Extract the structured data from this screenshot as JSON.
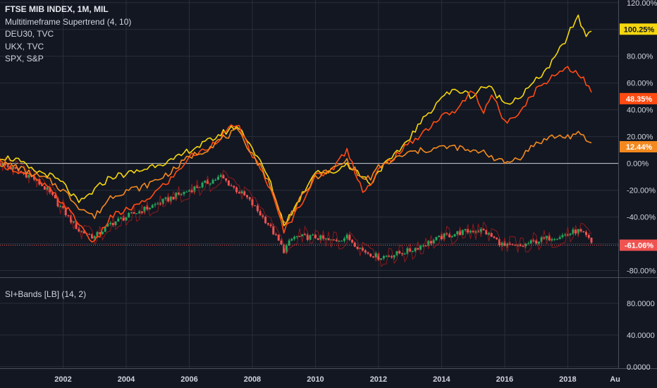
{
  "legend": {
    "title": "FTSE MIB INDEX, 1M, MIL",
    "items": [
      "Multitimeframe Supertrend (4, 10)",
      "DEU30, TVC",
      "UKX, TVC",
      "SPX, S&P"
    ]
  },
  "sub_legend": "SI+Bands [LB] (14, 2)",
  "colors": {
    "background": "#131722",
    "grid": "#2a2e39",
    "zero_line": "#c9ccd6",
    "spx": "#f5d60f",
    "deu30": "#ff4b12",
    "ukx": "#f3891e",
    "candle_up": "#26a65b",
    "candle_down": "#ef5350",
    "supertrend_down": "#9b1b1b",
    "supertrend_up": "#1f5c2a",
    "last_price_line": "#ef5350"
  },
  "chart_data": [
    {
      "type": "line",
      "title": "FTSE MIB INDEX, 1M, MIL",
      "x": [
        2000,
        2000.5,
        2001,
        2001.5,
        2002,
        2002.5,
        2003,
        2003.5,
        2004,
        2004.5,
        2005,
        2005.5,
        2006,
        2006.5,
        2007,
        2007.5,
        2007.8,
        2008.5,
        2009.0,
        2009.3,
        2010,
        2010.5,
        2011,
        2011.5,
        2011.8,
        2012,
        2012.5,
        2013,
        2013.5,
        2014,
        2014.5,
        2015,
        2015.3,
        2015.6,
        2016,
        2016.5,
        2017,
        2017.5,
        2018,
        2018.3,
        2018.6,
        2018.8
      ],
      "series": [
        {
          "name": "SPX, S&P",
          "color_key": "spx",
          "values": [
            5,
            3,
            -5,
            -8,
            -15,
            -30,
            -20,
            -10,
            -8,
            -5,
            0,
            2,
            10,
            15,
            22,
            28,
            20,
            -10,
            -45,
            -35,
            -5,
            -8,
            0,
            -10,
            -15,
            -5,
            5,
            20,
            35,
            50,
            55,
            50,
            58,
            55,
            45,
            50,
            62,
            75,
            95,
            110,
            95,
            100.25
          ]
        },
        {
          "name": "DEU30, TVC",
          "color_key": "deu30",
          "values": [
            0,
            -5,
            -10,
            -18,
            -30,
            -45,
            -60,
            -40,
            -35,
            -30,
            -20,
            -10,
            5,
            10,
            20,
            30,
            15,
            -15,
            -50,
            -40,
            -10,
            -5,
            10,
            -20,
            -15,
            -5,
            5,
            15,
            25,
            35,
            40,
            55,
            38,
            52,
            30,
            40,
            55,
            65,
            72,
            68,
            60,
            48.35
          ]
        },
        {
          "name": "UKX, TVC",
          "color_key": "ukx",
          "values": [
            0,
            -2,
            -8,
            -12,
            -20,
            -32,
            -40,
            -25,
            -20,
            -18,
            -12,
            -5,
            5,
            10,
            18,
            24,
            15,
            -12,
            -45,
            -35,
            -10,
            -5,
            2,
            -12,
            -10,
            -3,
            3,
            8,
            10,
            12,
            12,
            8,
            10,
            5,
            0,
            5,
            15,
            20,
            20,
            22,
            18,
            12.44
          ]
        },
        {
          "name": "FTSE MIB INDEX, 1M, MIL",
          "color_key": "candle_up",
          "values": [
            0,
            -5,
            -10,
            -20,
            -35,
            -50,
            -55,
            -45,
            -40,
            -35,
            -30,
            -25,
            -20,
            -15,
            -10,
            -20,
            -25,
            -45,
            -65,
            -55,
            -55,
            -58,
            -55,
            -65,
            -68,
            -70,
            -68,
            -65,
            -60,
            -55,
            -52,
            -50,
            -50,
            -55,
            -62,
            -62,
            -58,
            -55,
            -53,
            -50,
            -55,
            -61.06
          ]
        }
      ],
      "y_ticks": [
        "120.00%",
        "100.00%",
        "80.00%",
        "60.00%",
        "40.00%",
        "20.00%",
        "0.00%",
        "-20.00%",
        "-40.00%",
        "-60.00%",
        "-80.00%"
      ],
      "ylim": [
        -85,
        122
      ],
      "last_value_badges": [
        {
          "text": "100.25%",
          "value": 100.25,
          "bg": "#f5d60f",
          "fg": "#131722"
        },
        {
          "text": "48.35%",
          "value": 48.35,
          "bg": "#ff4b12",
          "fg": "#ffffff"
        },
        {
          "text": "12.44%",
          "value": 12.44,
          "bg": "#f3891e",
          "fg": "#ffffff"
        },
        {
          "text": "-61.06%",
          "value": -61.06,
          "bg": "#ef5350",
          "fg": "#ffffff"
        }
      ],
      "x_ticks": [
        "2002",
        "2004",
        "2006",
        "2008",
        "2010",
        "2012",
        "2014",
        "2016",
        "2018",
        "Au"
      ],
      "xlim": [
        2000,
        2019.6
      ],
      "zero_line": 0,
      "grid": true
    },
    {
      "type": "line",
      "title": "SI+Bands [LB] (14, 2)",
      "y_ticks": [
        "80.0000",
        "40.0000",
        "0.0000"
      ],
      "ylim": [
        -2,
        112
      ],
      "grid": true
    }
  ]
}
